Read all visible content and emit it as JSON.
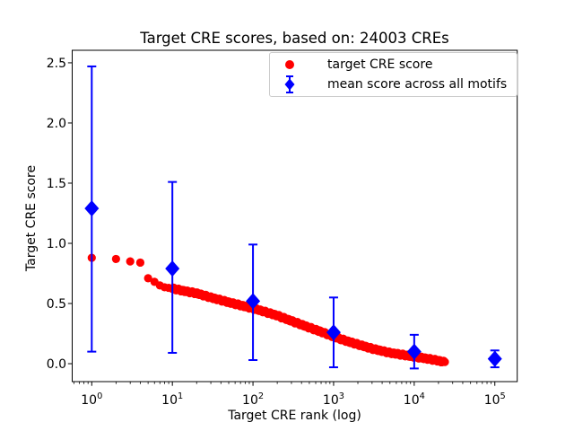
{
  "chart_data": {
    "type": "scatter",
    "title": "Target CRE scores, based on: 24003 CREs",
    "xlabel": "Target CRE rank (log)",
    "ylabel": "Target CRE score",
    "x_scale": "log",
    "xlim": [
      0.572,
      189600
    ],
    "ylim": [
      -0.149,
      2.604
    ],
    "x_tick_exponents": [
      0,
      1,
      2,
      3,
      4,
      5
    ],
    "y_ticks": [
      "0.0",
      "0.5",
      "1.0",
      "1.5",
      "2.0",
      "2.5"
    ],
    "grid": false,
    "legend_position": "upper right",
    "n_points_total": 24003,
    "series": [
      {
        "name": "target CRE score",
        "marker": "circle",
        "color": "#ff0000",
        "description": "24003 points, score vs rank; dense decaying trail sampled by anchors",
        "trend_anchors": [
          [
            1,
            0.88
          ],
          [
            2,
            0.87
          ],
          [
            3,
            0.85
          ],
          [
            4,
            0.84
          ],
          [
            5,
            0.71
          ],
          [
            6,
            0.68
          ],
          [
            7,
            0.65
          ],
          [
            8,
            0.635
          ],
          [
            9,
            0.63
          ],
          [
            10,
            0.625
          ],
          [
            15,
            0.6
          ],
          [
            20,
            0.585
          ],
          [
            30,
            0.55
          ],
          [
            50,
            0.51
          ],
          [
            70,
            0.485
          ],
          [
            100,
            0.46
          ],
          [
            150,
            0.425
          ],
          [
            200,
            0.4
          ],
          [
            300,
            0.355
          ],
          [
            500,
            0.3
          ],
          [
            700,
            0.265
          ],
          [
            1000,
            0.225
          ],
          [
            1500,
            0.185
          ],
          [
            2000,
            0.16
          ],
          [
            3000,
            0.125
          ],
          [
            5000,
            0.09
          ],
          [
            7000,
            0.075
          ],
          [
            10000,
            0.058
          ],
          [
            15000,
            0.04
          ],
          [
            20000,
            0.025
          ],
          [
            24003,
            0.012
          ]
        ]
      },
      {
        "name": "mean score across all motifs",
        "marker": "diamond",
        "color": "#0000ff",
        "points": [
          {
            "x": 1,
            "y": 1.29,
            "lo": 0.1,
            "hi": 2.47
          },
          {
            "x": 10,
            "y": 0.79,
            "lo": 0.09,
            "hi": 1.51
          },
          {
            "x": 100,
            "y": 0.52,
            "lo": 0.03,
            "hi": 0.99
          },
          {
            "x": 1000,
            "y": 0.26,
            "lo": -0.03,
            "hi": 0.55
          },
          {
            "x": 10000,
            "y": 0.1,
            "lo": -0.04,
            "hi": 0.24
          },
          {
            "x": 100000,
            "y": 0.04,
            "lo": -0.03,
            "hi": 0.11
          }
        ]
      }
    ]
  }
}
